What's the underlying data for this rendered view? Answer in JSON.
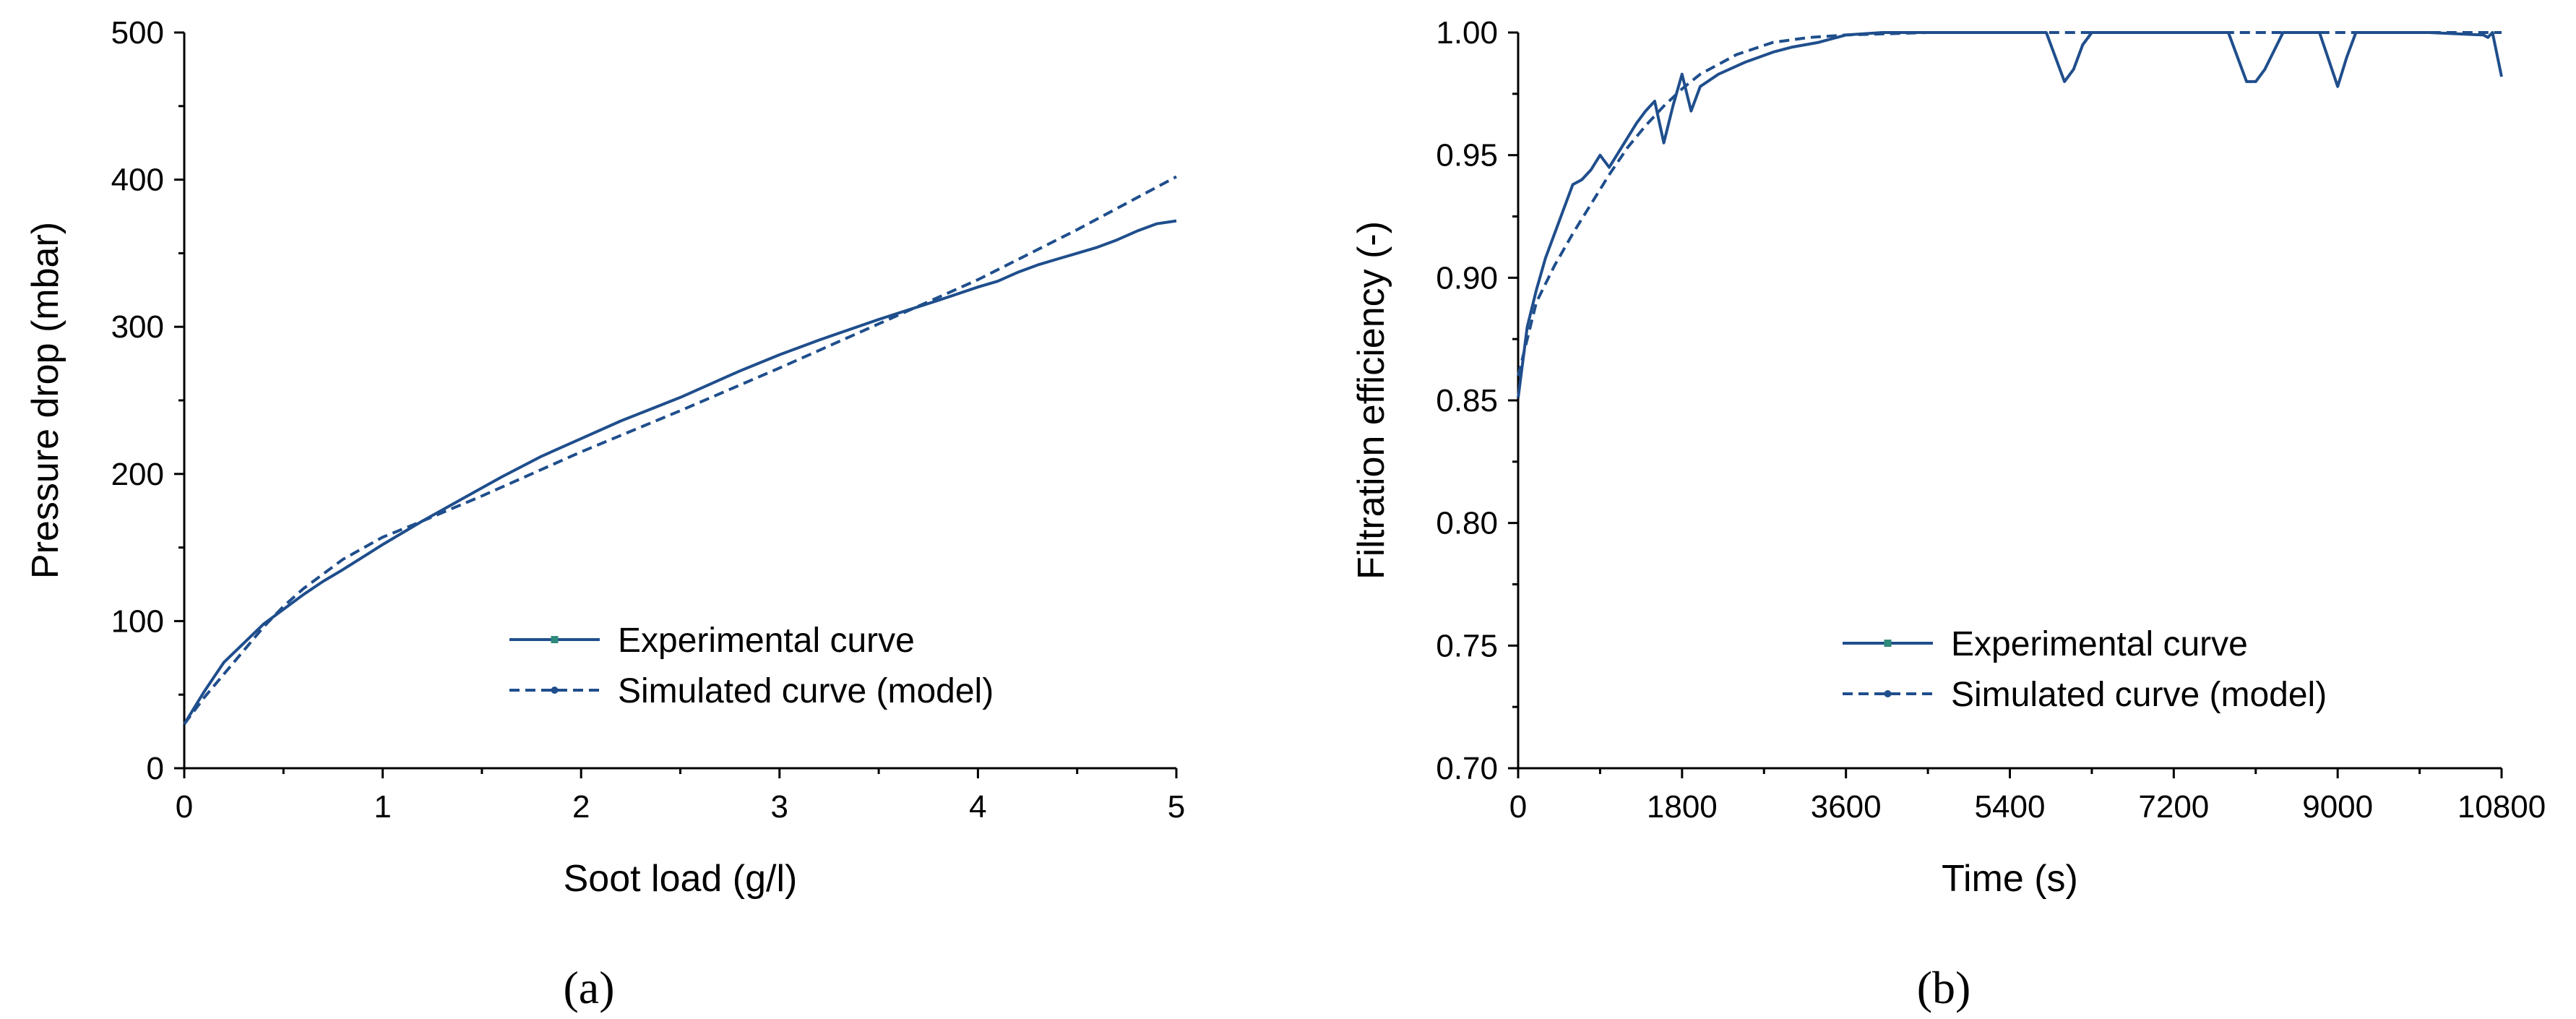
{
  "figure": {
    "panel_a_label": "(a)",
    "panel_b_label": "(b)"
  },
  "colors": {
    "series": "#1f4e8c",
    "axis": "#000000"
  },
  "chart_data": [
    {
      "type": "line",
      "id": "a",
      "title": "",
      "xlabel": "Soot load  (g/l)",
      "ylabel": "Pressure drop  (mbar)",
      "xlim": [
        0,
        5
      ],
      "ylim": [
        0,
        500
      ],
      "xticks": [
        0,
        1,
        2,
        3,
        4,
        5
      ],
      "xtick_labels": [
        "0",
        "1",
        "2",
        "3",
        "4",
        "5"
      ],
      "yticks": [
        0,
        100,
        200,
        300,
        400,
        500
      ],
      "ytick_labels": [
        "0",
        "100",
        "200",
        "300",
        "400",
        "500"
      ],
      "legend_position": "bottom-right",
      "series": [
        {
          "name": "Experimental curve",
          "style": "solid",
          "x": [
            0,
            0.1,
            0.2,
            0.3,
            0.4,
            0.5,
            0.6,
            0.7,
            0.8,
            1.0,
            1.2,
            1.4,
            1.6,
            1.8,
            2.0,
            2.2,
            2.5,
            2.8,
            3.0,
            3.2,
            3.5,
            3.8,
            4.0,
            4.1,
            4.2,
            4.3,
            4.4,
            4.5,
            4.6,
            4.7,
            4.8,
            4.9,
            5.0
          ],
          "y": [
            30,
            52,
            72,
            85,
            98,
            108,
            118,
            127,
            135,
            152,
            168,
            183,
            198,
            212,
            224,
            236,
            252,
            270,
            281,
            291,
            305,
            318,
            327,
            331,
            337,
            342,
            346,
            350,
            354,
            359,
            365,
            370,
            372
          ]
        },
        {
          "name": "Simulated curve (model)",
          "style": "dashed",
          "x": [
            0,
            0.1,
            0.2,
            0.3,
            0.4,
            0.5,
            0.6,
            0.8,
            1.0,
            1.2,
            1.5,
            2.0,
            2.5,
            3.0,
            3.5,
            4.0,
            4.5,
            5.0
          ],
          "y": [
            30,
            48,
            64,
            80,
            96,
            110,
            122,
            142,
            157,
            168,
            185,
            215,
            243,
            272,
            302,
            332,
            366,
            402
          ]
        }
      ]
    },
    {
      "type": "line",
      "id": "b",
      "title": "",
      "xlabel": "Time  (s)",
      "ylabel": "Filtration efficiency  (-)",
      "xlim": [
        0,
        10800
      ],
      "ylim": [
        0.7,
        1.0
      ],
      "xticks": [
        0,
        1800,
        3600,
        5400,
        7200,
        9000,
        10800
      ],
      "xtick_labels": [
        "0",
        "1800",
        "3600",
        "5400",
        "7200",
        "9000",
        "10800"
      ],
      "yticks": [
        0.7,
        0.75,
        0.8,
        0.85,
        0.9,
        0.95,
        1.0
      ],
      "ytick_labels": [
        "0.70",
        "0.75",
        "0.80",
        "0.85",
        "0.90",
        "0.95",
        "1.00"
      ],
      "legend_position": "bottom-right",
      "series": [
        {
          "name": "Experimental curve",
          "style": "solid",
          "x": [
            0,
            100,
            200,
            300,
            400,
            500,
            600,
            700,
            800,
            900,
            1000,
            1100,
            1200,
            1300,
            1400,
            1500,
            1600,
            1700,
            1800,
            1900,
            2000,
            2200,
            2500,
            2800,
            3000,
            3300,
            3600,
            4000,
            4500,
            5000,
            5800,
            6000,
            6100,
            6200,
            6300,
            7000,
            7800,
            8000,
            8100,
            8200,
            8400,
            8800,
            9000,
            9100,
            9200,
            10000,
            10600,
            10650,
            10700,
            10800
          ],
          "y": [
            0.851,
            0.88,
            0.895,
            0.908,
            0.918,
            0.928,
            0.938,
            0.94,
            0.944,
            0.95,
            0.945,
            0.951,
            0.957,
            0.963,
            0.968,
            0.972,
            0.955,
            0.97,
            0.983,
            0.968,
            0.978,
            0.983,
            0.988,
            0.992,
            0.994,
            0.996,
            0.999,
            1.0,
            1.0,
            1.0,
            1.0,
            0.98,
            0.985,
            0.995,
            1.0,
            1.0,
            1.0,
            0.98,
            0.98,
            0.985,
            1.0,
            1.0,
            0.978,
            0.99,
            1.0,
            1.0,
            0.999,
            0.998,
            1.0,
            0.982
          ]
        },
        {
          "name": "Simulated curve (model)",
          "style": "dashed",
          "x": [
            0,
            100,
            200,
            400,
            600,
            800,
            1000,
            1200,
            1400,
            1600,
            1800,
            2000,
            2400,
            2800,
            3200,
            3600,
            4500,
            5400,
            7200,
            9000,
            10800
          ],
          "y": [
            0.86,
            0.875,
            0.89,
            0.905,
            0.918,
            0.93,
            0.942,
            0.953,
            0.962,
            0.97,
            0.977,
            0.983,
            0.991,
            0.996,
            0.998,
            0.999,
            1.0,
            1.0,
            1.0,
            1.0,
            1.0
          ]
        }
      ]
    }
  ]
}
